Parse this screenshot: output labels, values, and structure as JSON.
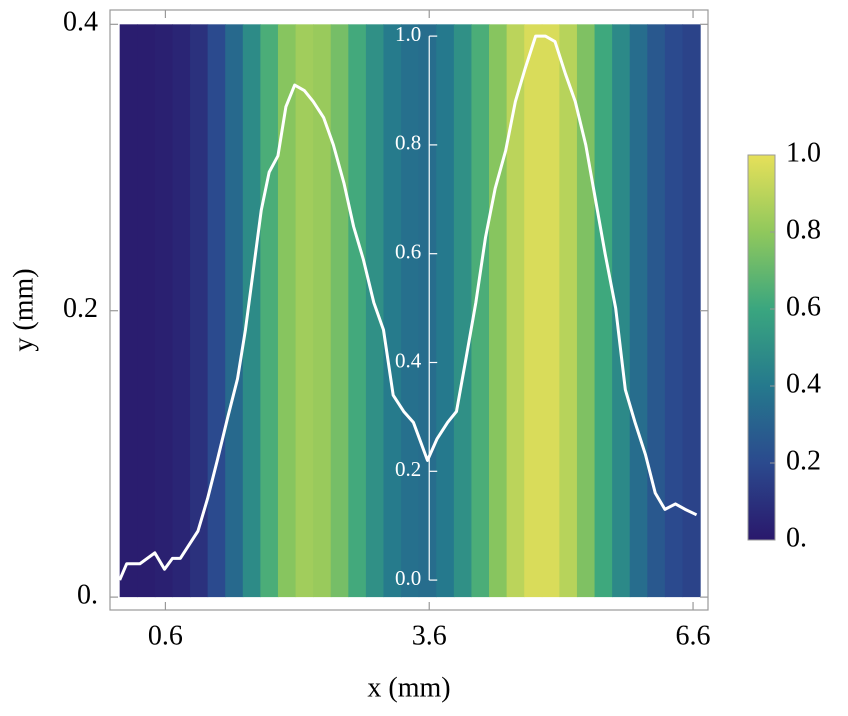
{
  "chart_data": {
    "type": "density",
    "xlabel": "x (mm)",
    "ylabel": "y (mm)",
    "xlim": [
      -0.03,
      6.77
    ],
    "xticks": [
      0.6,
      3.6,
      6.6
    ],
    "ylim": [
      -0.009,
      0.41
    ],
    "yticks": [
      {
        "value": 0,
        "label": "0."
      },
      0.2,
      0.4
    ],
    "y2lim": [
      -0.055,
      1.048
    ],
    "y2ticks": [
      {
        "value": 0,
        "label": "0.0"
      },
      0.2,
      0.4,
      0.6,
      0.8,
      {
        "value": 1,
        "label": "1.0"
      }
    ],
    "y2_position": 3.6,
    "density": {
      "y_range": [
        0,
        0.4
      ],
      "bins": [
        0.08,
        0.28,
        0.48,
        0.68,
        0.88,
        1.08,
        1.28,
        1.48,
        1.68,
        1.88,
        2.08,
        2.28,
        2.48,
        2.68,
        2.88,
        3.08,
        3.28,
        3.48,
        3.68,
        3.88,
        4.08,
        4.28,
        4.48,
        4.68,
        4.88,
        5.08,
        5.28,
        5.48,
        5.68,
        5.88,
        6.08,
        6.28,
        6.48,
        6.68
      ],
      "values": [
        0.02,
        0.02,
        0.03,
        0.05,
        0.1,
        0.2,
        0.33,
        0.48,
        0.64,
        0.78,
        0.84,
        0.82,
        0.74,
        0.62,
        0.5,
        0.41,
        0.36,
        0.35,
        0.4,
        0.5,
        0.64,
        0.78,
        0.9,
        0.97,
        0.97,
        0.89,
        0.76,
        0.61,
        0.47,
        0.35,
        0.26,
        0.2,
        0.17
      ]
    },
    "colormap": [
      "#2a186c",
      "#2b4a8e",
      "#25798d",
      "#3aa67f",
      "#90c85c",
      "#e6e05a"
    ],
    "colorbar": {
      "lim": [
        0,
        1
      ],
      "ticks": [
        {
          "value": 0,
          "label": "0."
        },
        0.2,
        0.4,
        0.6,
        0.8,
        {
          "value": 1,
          "label": "1.0"
        }
      ]
    },
    "series": [
      {
        "axis": "y2",
        "color": "#ffffff",
        "x": [
          0.08,
          0.16,
          0.31,
          0.48,
          0.59,
          0.68,
          0.77,
          0.85,
          0.97,
          1.08,
          1.19,
          1.31,
          1.42,
          1.51,
          1.6,
          1.69,
          1.78,
          1.88,
          1.97,
          2.07,
          2.18,
          2.28,
          2.4,
          2.51,
          2.63,
          2.74,
          2.85,
          2.97,
          3.08,
          3.19,
          3.31,
          3.42,
          3.58,
          3.69,
          3.81,
          3.91,
          4.01,
          4.13,
          4.24,
          4.35,
          4.47,
          4.58,
          4.69,
          4.81,
          4.92,
          5.03,
          5.15,
          5.26,
          5.38,
          5.49,
          5.6,
          5.72,
          5.83,
          5.94,
          6.06,
          6.17,
          6.28,
          6.4,
          6.51,
          6.64
        ],
        "values": [
          0.0,
          0.03,
          0.03,
          0.05,
          0.02,
          0.04,
          0.04,
          0.06,
          0.09,
          0.15,
          0.22,
          0.3,
          0.37,
          0.46,
          0.57,
          0.68,
          0.75,
          0.78,
          0.87,
          0.91,
          0.9,
          0.88,
          0.85,
          0.8,
          0.73,
          0.65,
          0.59,
          0.51,
          0.46,
          0.34,
          0.31,
          0.29,
          0.22,
          0.26,
          0.29,
          0.31,
          0.4,
          0.51,
          0.63,
          0.72,
          0.79,
          0.88,
          0.94,
          1.0,
          1.0,
          0.99,
          0.93,
          0.88,
          0.8,
          0.7,
          0.6,
          0.5,
          0.35,
          0.29,
          0.23,
          0.16,
          0.13,
          0.14,
          0.13,
          0.12
        ]
      }
    ]
  }
}
